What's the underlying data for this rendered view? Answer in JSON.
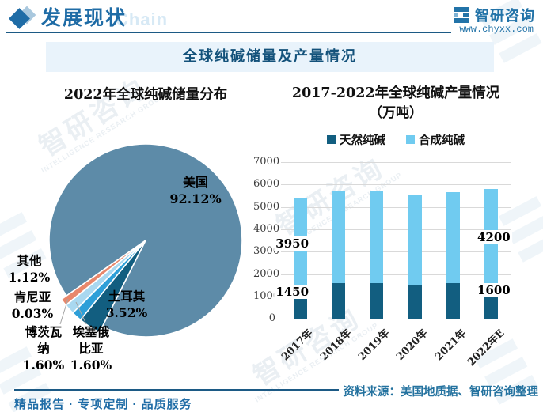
{
  "header": {
    "section_title": "发展现状",
    "watermark_text": "Chain",
    "brand_name": "智研咨询",
    "brand_url": "www.chyxx.com"
  },
  "banner": {
    "title": "全球纯碱储量及产量情况"
  },
  "watermarks": {
    "brand": "智研咨询",
    "subtitle": "INTELLIGENCE RESEARCH GROUP"
  },
  "footer": {
    "slogan": "精品报告 · 专项定制 · 品质服务",
    "source": "资料来源：美国地质据、智研咨询整理"
  },
  "chart_data": [
    {
      "type": "pie",
      "title": "2022年全球纯碱储量分布",
      "start_angle_deg": 235,
      "legend_position": "none",
      "slices": [
        {
          "label": "美国",
          "value": 92.12,
          "pct_text": "92.12%",
          "color": "#5d8ba8",
          "r_extra": 0,
          "display_lines": [
            "美国",
            "92.12%"
          ]
        },
        {
          "label": "土耳其",
          "value": 3.52,
          "pct_text": "3.52%",
          "color": "#125e80",
          "r_extra": 8,
          "display_lines": [
            "土耳其",
            "3.52%"
          ]
        },
        {
          "label": "埃塞俄比亚",
          "value": 1.6,
          "pct_text": "1.60%",
          "color": "#2e9fd8",
          "r_extra": 8,
          "display_lines": [
            "埃塞俄",
            "比亚",
            "1.60%"
          ]
        },
        {
          "label": "博茨瓦纳",
          "value": 1.6,
          "pct_text": "1.60%",
          "color": "#a9d8f0",
          "r_extra": 8,
          "display_lines": [
            "博茨瓦",
            "纳",
            "1.60%"
          ]
        },
        {
          "label": "肯尼亚",
          "value": 0.03,
          "pct_text": "0.03%",
          "color": "#ffffff",
          "r_extra": 8,
          "display_lines": [
            "肯尼亚",
            "0.03%"
          ]
        },
        {
          "label": "其他",
          "value": 1.12,
          "pct_text": "1.12%",
          "color": "#e8876b",
          "r_extra": 8,
          "display_lines": [
            "其他",
            "1.12%"
          ]
        }
      ]
    },
    {
      "type": "bar",
      "stacked": true,
      "title": "2017-2022年全球纯碱产量情况",
      "title_unit": "（万吨）",
      "categories": [
        "2017年",
        "2018年",
        "2019年",
        "2020年",
        "2021年",
        "2022年E"
      ],
      "series": [
        {
          "name": "天然纯碱",
          "color": "#125e80",
          "values": [
            1450,
            1600,
            1600,
            1500,
            1600,
            1600
          ]
        },
        {
          "name": "合成纯碱",
          "color": "#70cbf0",
          "values": [
            3950,
            4100,
            4100,
            4050,
            4050,
            4200
          ]
        }
      ],
      "ylim": [
        0,
        7000
      ],
      "ytick_step": 1000,
      "grid": true,
      "legend_position": "top",
      "data_labels": [
        {
          "col": 0,
          "series": 0,
          "text": "1450"
        },
        {
          "col": 0,
          "series": 1,
          "text": "3950"
        },
        {
          "col": 5,
          "series": 0,
          "text": "1600"
        },
        {
          "col": 5,
          "series": 1,
          "text": "4200"
        }
      ]
    }
  ]
}
